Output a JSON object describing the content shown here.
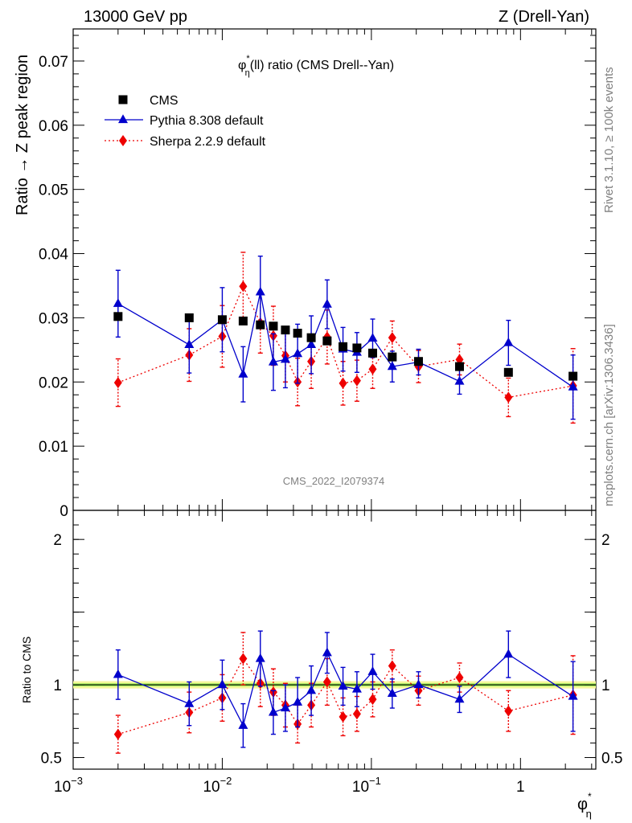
{
  "header": {
    "left": "13000 GeV pp",
    "right": "Z (Drell-Yan)"
  },
  "side_labels": {
    "rivet": "Rivet 3.1.10, ≥ 100k events",
    "mcplots": "mcplots.cern.ch [arXiv:1306.3436]"
  },
  "colors": {
    "cms": "#000000",
    "pythia": "#0000cc",
    "sherpa": "#ee0000",
    "band_outer": "#f5f79a",
    "band_inner": "#99ee55"
  },
  "chart_data": {
    "type": "scatter",
    "title": "φ*η(ll) ratio (CMS Drell--Yan)",
    "title_parts": {
      "symbol": "φ",
      "sup": "*",
      "sub": "η",
      "rest": "(ll) ratio (CMS Drell--Yan)"
    },
    "watermark": "CMS_2022_I2079374",
    "xlabel": {
      "symbol": "φ",
      "sup": "*",
      "sub": "η"
    },
    "xscale": "log",
    "xlim": [
      0.001,
      3.2
    ],
    "x_ticks": [
      {
        "base": "10",
        "exp": "−3",
        "value": 0.001
      },
      {
        "base": "10",
        "exp": "−2",
        "value": 0.01
      },
      {
        "base": "10",
        "exp": "−1",
        "value": 0.1
      },
      {
        "base": "1",
        "exp": "",
        "value": 1
      }
    ],
    "main": {
      "ylabel": "Ratio → Z peak region",
      "ylim": [
        0,
        0.075
      ],
      "y_ticks": [
        "0",
        "0.01",
        "0.02",
        "0.03",
        "0.04",
        "0.05",
        "0.06",
        "0.07"
      ],
      "y_tick_values": [
        0,
        0.01,
        0.02,
        0.03,
        0.04,
        0.05,
        0.06,
        0.07
      ]
    },
    "ratio": {
      "ylabel": "Ratio to CMS",
      "ylim": [
        0.42,
        2.2
      ],
      "y_ticks": [
        "0.5",
        "1",
        "2"
      ],
      "y_tick_values": [
        0.5,
        1,
        2
      ],
      "band_outer": [
        0.975,
        1.025
      ],
      "band_inner": [
        0.99,
        1.01
      ]
    },
    "legend": {
      "position": "top-left",
      "entries": [
        "CMS",
        "Pythia 8.308 default",
        "Sherpa 2.2.9 default"
      ]
    },
    "x": [
      0.002,
      0.006,
      0.01,
      0.0138,
      0.018,
      0.022,
      0.0265,
      0.032,
      0.0395,
      0.0505,
      0.0645,
      0.08,
      0.102,
      0.138,
      0.207,
      0.39,
      0.83,
      2.25
    ],
    "series": [
      {
        "name": "CMS",
        "marker": "square",
        "values": [
          0.0302,
          0.03,
          0.0297,
          0.0295,
          0.0289,
          0.0287,
          0.0281,
          0.0276,
          0.0269,
          0.0264,
          0.0255,
          0.0253,
          0.0245,
          0.0239,
          0.0232,
          0.0224,
          0.0215,
          0.0209
        ]
      },
      {
        "name": "Pythia 8.308 default",
        "marker": "triangle",
        "values": [
          0.0322,
          0.0258,
          0.0297,
          0.0212,
          0.034,
          0.0231,
          0.0235,
          0.0244,
          0.0258,
          0.0321,
          0.0251,
          0.0246,
          0.0268,
          0.0224,
          0.0231,
          0.0201,
          0.0261,
          0.0192
        ],
        "errors": [
          0.0052,
          0.0044,
          0.005,
          0.0043,
          0.0056,
          0.0044,
          0.0044,
          0.0046,
          0.0045,
          0.0038,
          0.0034,
          0.0031,
          0.003,
          0.0024,
          0.002,
          0.002,
          0.0035,
          0.005
        ],
        "ratio": [
          1.07,
          0.87,
          1.0,
          0.72,
          1.18,
          0.81,
          0.84,
          0.88,
          0.96,
          1.22,
          0.99,
          0.97,
          1.09,
          0.94,
          1.0,
          0.9,
          1.21,
          0.92
        ],
        "ratio_errors": [
          0.17,
          0.15,
          0.17,
          0.15,
          0.19,
          0.15,
          0.16,
          0.17,
          0.17,
          0.14,
          0.13,
          0.12,
          0.12,
          0.1,
          0.09,
          0.09,
          0.16,
          0.24
        ]
      },
      {
        "name": "Sherpa 2.2.9 default",
        "marker": "diamond",
        "line": "dotted",
        "values": [
          0.0199,
          0.0242,
          0.0271,
          0.0349,
          0.0292,
          0.0272,
          0.0241,
          0.02,
          0.0232,
          0.027,
          0.0198,
          0.0202,
          0.022,
          0.0269,
          0.0224,
          0.0235,
          0.0176,
          0.0194
        ],
        "errors": [
          0.0037,
          0.0041,
          0.0048,
          0.0053,
          0.0047,
          0.0046,
          0.0041,
          0.0037,
          0.0042,
          0.0042,
          0.0034,
          0.0032,
          0.003,
          0.0026,
          0.0025,
          0.0024,
          0.003,
          0.0058
        ],
        "ratio": [
          0.66,
          0.81,
          0.91,
          1.18,
          1.01,
          0.95,
          0.86,
          0.73,
          0.86,
          1.02,
          0.78,
          0.8,
          0.9,
          1.13,
          0.96,
          1.05,
          0.82,
          0.93
        ],
        "ratio_errors": [
          0.13,
          0.14,
          0.16,
          0.18,
          0.16,
          0.16,
          0.15,
          0.13,
          0.15,
          0.16,
          0.13,
          0.12,
          0.12,
          0.11,
          0.1,
          0.1,
          0.14,
          0.27
        ]
      }
    ]
  }
}
